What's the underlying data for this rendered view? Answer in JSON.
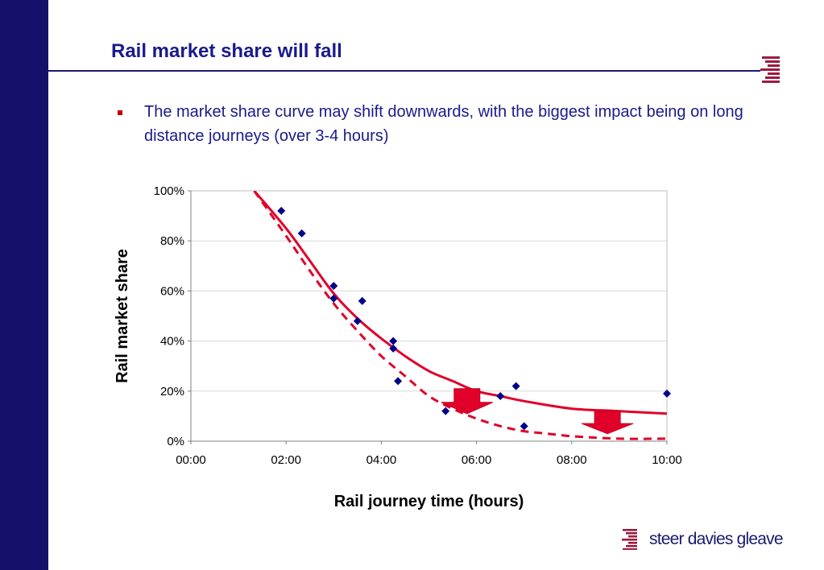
{
  "slide": {
    "title": "Rail market share will fall",
    "bullet": "The market share curve may shift downwards, with the biggest impact being on long distance journeys (over 3-4 hours)",
    "logo_text": "steer davies gleave",
    "colors": {
      "sidebar": "#15116a",
      "title": "#1a1a8c",
      "accent": "#e0002a",
      "points": "#00008b"
    },
    "icons": {
      "logo": "steer-davies-gleave-logo-icon",
      "bullet": "square-bullet-icon"
    }
  },
  "chart_data": {
    "type": "scatter",
    "title": "",
    "xlabel": "Rail journey time (hours)",
    "ylabel": "Rail market share",
    "x_unit": "hours",
    "xlim": [
      0,
      10
    ],
    "ylim": [
      0,
      100
    ],
    "x_ticks": [
      "00:00",
      "02:00",
      "04:00",
      "06:00",
      "08:00",
      "10:00"
    ],
    "y_ticks": [
      "0%",
      "20%",
      "40%",
      "60%",
      "80%",
      "100%"
    ],
    "grid": "horizontal",
    "series": [
      {
        "kind": "points",
        "color": "#00008b",
        "marker": "diamond",
        "points": [
          {
            "x": 1.9,
            "y": 92
          },
          {
            "x": 2.33,
            "y": 83
          },
          {
            "x": 3.0,
            "y": 62
          },
          {
            "x": 3.0,
            "y": 57
          },
          {
            "x": 3.5,
            "y": 48
          },
          {
            "x": 3.6,
            "y": 56
          },
          {
            "x": 4.25,
            "y": 40
          },
          {
            "x": 4.25,
            "y": 37
          },
          {
            "x": 4.35,
            "y": 24
          },
          {
            "x": 5.35,
            "y": 12
          },
          {
            "x": 6.5,
            "y": 18
          },
          {
            "x": 6.83,
            "y": 22
          },
          {
            "x": 7.0,
            "y": 6
          },
          {
            "x": 10.0,
            "y": 19
          }
        ]
      },
      {
        "kind": "curve",
        "style": "solid",
        "color": "#e0002a",
        "points": [
          {
            "x": 1.33,
            "y": 100
          },
          {
            "x": 2.0,
            "y": 85
          },
          {
            "x": 2.5,
            "y": 72
          },
          {
            "x": 3.0,
            "y": 59
          },
          {
            "x": 3.5,
            "y": 49
          },
          {
            "x": 4.0,
            "y": 41
          },
          {
            "x": 4.5,
            "y": 34
          },
          {
            "x": 5.0,
            "y": 28
          },
          {
            "x": 5.5,
            "y": 24
          },
          {
            "x": 6.0,
            "y": 20
          },
          {
            "x": 6.5,
            "y": 18
          },
          {
            "x": 7.0,
            "y": 16
          },
          {
            "x": 8.0,
            "y": 13
          },
          {
            "x": 9.0,
            "y": 12
          },
          {
            "x": 10.0,
            "y": 11
          }
        ]
      },
      {
        "kind": "curve",
        "style": "dashed",
        "color": "#e0002a",
        "points": [
          {
            "x": 1.33,
            "y": 100
          },
          {
            "x": 2.0,
            "y": 82
          },
          {
            "x": 2.5,
            "y": 68
          },
          {
            "x": 3.0,
            "y": 55
          },
          {
            "x": 3.5,
            "y": 44
          },
          {
            "x": 4.0,
            "y": 34
          },
          {
            "x": 4.5,
            "y": 26
          },
          {
            "x": 5.0,
            "y": 18
          },
          {
            "x": 5.5,
            "y": 13
          },
          {
            "x": 6.0,
            "y": 9
          },
          {
            "x": 6.5,
            "y": 6
          },
          {
            "x": 7.0,
            "y": 4
          },
          {
            "x": 7.5,
            "y": 3
          },
          {
            "x": 8.0,
            "y": 2
          },
          {
            "x": 9.0,
            "y": 1
          },
          {
            "x": 10.0,
            "y": 1
          }
        ]
      }
    ],
    "annotations": [
      {
        "type": "down-arrow",
        "x": 5.8,
        "y_from": 21,
        "y_to": 11,
        "color": "#e0002a"
      },
      {
        "type": "down-arrow",
        "x": 8.75,
        "y_from": 12,
        "y_to": 3,
        "color": "#e0002a"
      }
    ]
  }
}
